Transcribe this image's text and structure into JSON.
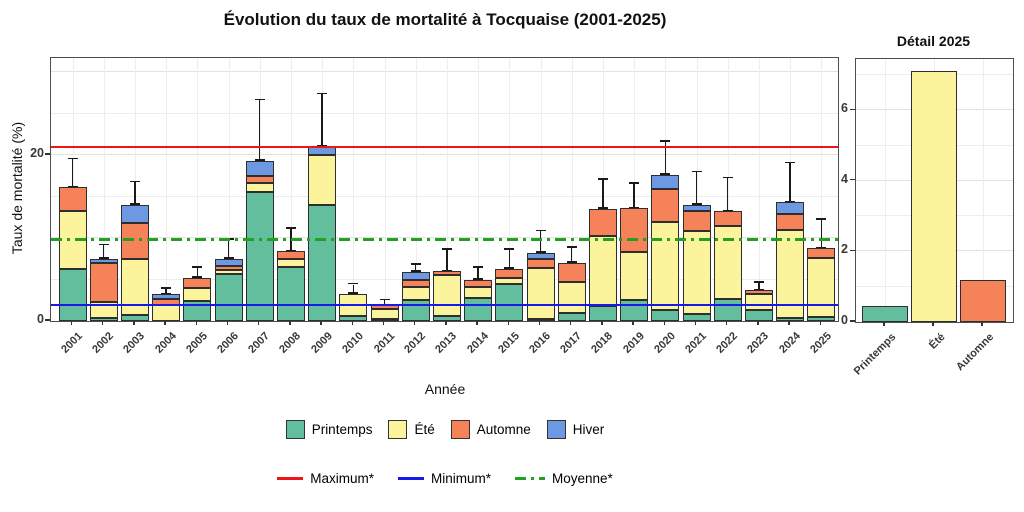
{
  "chart_data": [
    {
      "id": "main",
      "type": "stacked_bar_with_errorbars",
      "title": "Évolution du taux de mortalité à Tocquaise (2001-2025)",
      "xlabel": "Année",
      "ylabel": "Taux de mortalité (%)",
      "ylim": [
        0,
        31.7
      ],
      "yticks": [
        0,
        20
      ],
      "grid": true,
      "legend_position": "bottom",
      "categories": [
        "2001",
        "2002",
        "2003",
        "2004",
        "2005",
        "2006",
        "2007",
        "2008",
        "2009",
        "2010",
        "2011",
        "2012",
        "2013",
        "2014",
        "2015",
        "2016",
        "2017",
        "2018",
        "2019",
        "2020",
        "2021",
        "2022",
        "2023",
        "2024",
        "2025"
      ],
      "series": [
        {
          "name": "Printemps",
          "color": "#63BE9E",
          "values": [
            6.3,
            0.4,
            0.7,
            0.0,
            2.4,
            5.7,
            15.6,
            6.5,
            14.0,
            0.6,
            0.3,
            2.5,
            0.6,
            2.8,
            4.4,
            0.3,
            1.0,
            1.8,
            2.5,
            1.3,
            0.9,
            2.6,
            1.3,
            0.4,
            0.45
          ]
        },
        {
          "name": "Été",
          "color": "#FBF49D",
          "values": [
            7.0,
            1.9,
            6.8,
            1.9,
            1.6,
            0.5,
            1.0,
            1.0,
            6.0,
            2.7,
            1.1,
            1.6,
            4.9,
            1.3,
            0.8,
            6.1,
            3.7,
            8.5,
            5.8,
            10.6,
            9.9,
            8.8,
            1.9,
            10.6,
            7.1
          ]
        },
        {
          "name": "Automne",
          "color": "#F6825A",
          "values": [
            2.8,
            4.7,
            4.3,
            0.7,
            1.2,
            0.4,
            0.9,
            0.9,
            0.0,
            0.0,
            0.5,
            0.9,
            0.5,
            0.9,
            1.1,
            1.1,
            2.3,
            3.2,
            5.3,
            4.0,
            2.4,
            1.8,
            0.5,
            1.9,
            1.2
          ]
        },
        {
          "name": "Hiver",
          "color": "#6D99E2",
          "values": [
            0.0,
            0.5,
            2.2,
            0.6,
            0.0,
            0.9,
            1.8,
            0.0,
            1.0,
            0.0,
            0.0,
            0.9,
            0.0,
            0.0,
            0.0,
            0.7,
            0.0,
            0.0,
            0.0,
            1.7,
            0.8,
            0.0,
            0.0,
            1.4,
            0.0
          ]
        }
      ],
      "totals": [
        16.1,
        7.5,
        14.0,
        3.2,
        5.2,
        7.5,
        19.3,
        8.4,
        21.0,
        3.3,
        1.9,
        5.9,
        6.0,
        5.0,
        6.3,
        8.2,
        7.0,
        13.5,
        13.6,
        17.6,
        14.0,
        13.2,
        3.7,
        14.3,
        8.75
      ],
      "error_upper": [
        19.5,
        9.1,
        16.7,
        3.9,
        6.4,
        9.8,
        26.6,
        11.1,
        27.3,
        4.4,
        2.5,
        6.8,
        8.6,
        6.4,
        8.6,
        10.8,
        8.8,
        17.0,
        16.5,
        21.6,
        17.9,
        17.2,
        4.6,
        19.0,
        12.2
      ],
      "reference_lines": [
        {
          "name": "Maximum*",
          "value": 21.0,
          "color": "#F01515",
          "style": "solid"
        },
        {
          "name": "Minimum*",
          "value": 1.9,
          "color": "#1A1AE8",
          "style": "solid"
        },
        {
          "name": "Moyenne*",
          "value": 9.8,
          "color": "#22A022",
          "style": "dashdot"
        }
      ]
    },
    {
      "id": "detail",
      "type": "bar",
      "title": "Détail 2025",
      "categories": [
        "Printemps",
        "Été",
        "Automne"
      ],
      "values": [
        0.45,
        7.1,
        1.2
      ],
      "colors": [
        "#63BE9E",
        "#FBF49D",
        "#F6825A"
      ],
      "yticks": [
        0,
        2,
        4,
        6
      ],
      "ylim": [
        0,
        7.45
      ],
      "grid": true
    }
  ]
}
